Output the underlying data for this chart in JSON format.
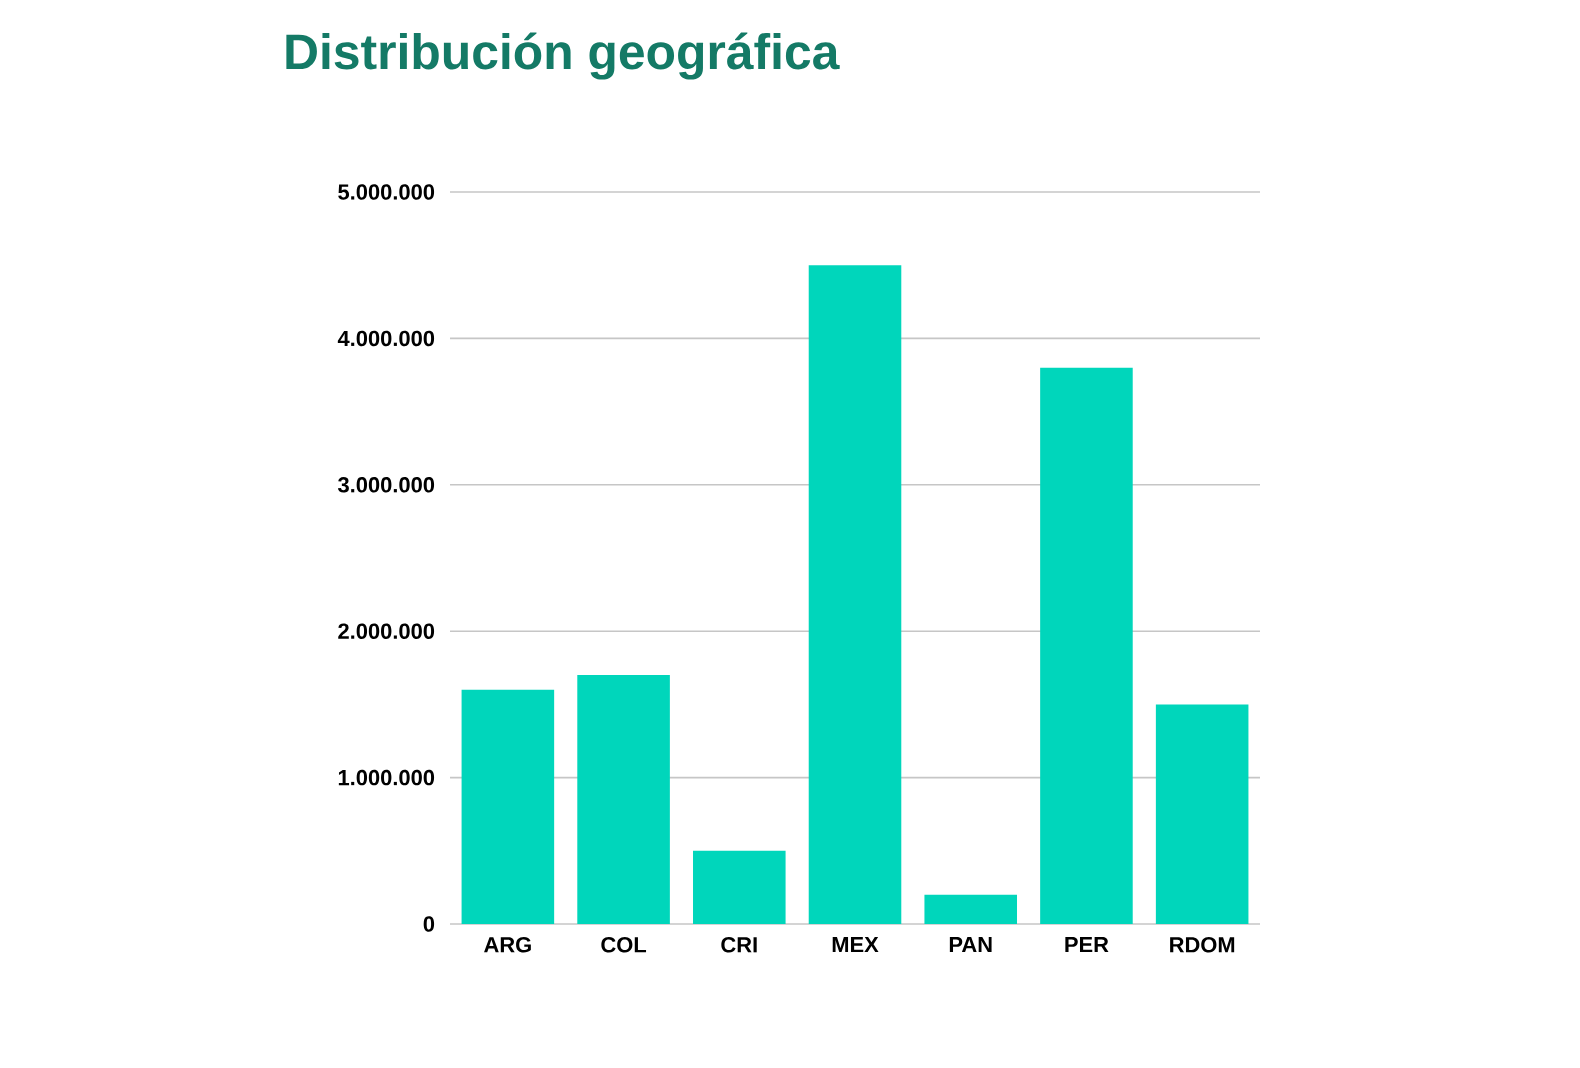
{
  "chart_data": {
    "type": "bar",
    "title": "Distribución geográfica",
    "categories": [
      "ARG",
      "COL",
      "CRI",
      "MEX",
      "PAN",
      "PER",
      "RDOM"
    ],
    "values": [
      1600000,
      1700000,
      500000,
      4500000,
      200000,
      3800000,
      1500000
    ],
    "color": "#00d6bb",
    "ylim": [
      0,
      5000000
    ],
    "yticks": [
      0,
      {
        "value": 1000000,
        "label": "1.000.000"
      },
      {
        "value": 2000000,
        "label": "2.000.000"
      },
      {
        "value": 3000000,
        "label": "3.000.000"
      },
      {
        "value": 4000000,
        "label": "4.000.000"
      },
      {
        "value": 5000000,
        "label": "5.000.000"
      }
    ],
    "grid": "y"
  }
}
